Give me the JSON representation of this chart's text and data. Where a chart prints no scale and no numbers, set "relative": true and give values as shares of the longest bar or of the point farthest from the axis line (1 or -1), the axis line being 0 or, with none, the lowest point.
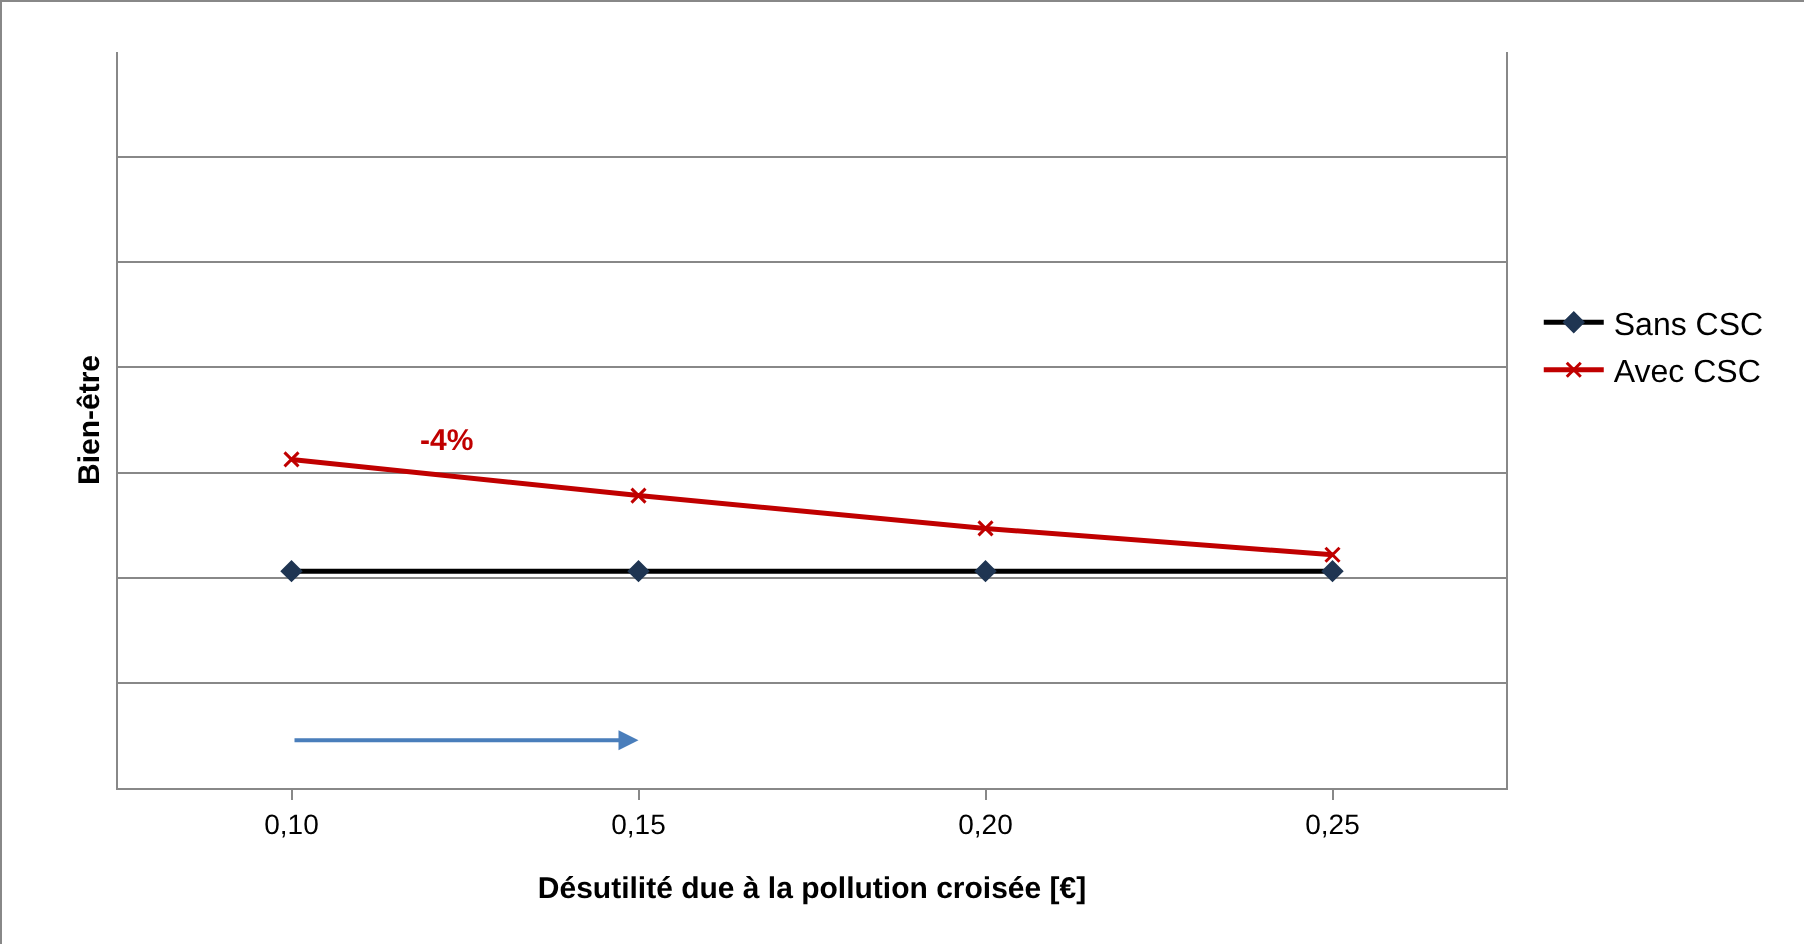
{
  "chart_data": {
    "type": "line",
    "relative": true,
    "xlabel": "Désutilité due à la pollution croisée [€]",
    "ylabel": "Bien-être",
    "categories": [
      "0,10",
      "0,15",
      "0,20",
      "0,25"
    ],
    "series": [
      {
        "name": "Sans CSC",
        "color": "#000000",
        "marker": "diamond",
        "values": [
          0.66,
          0.66,
          0.66,
          0.66
        ]
      },
      {
        "name": "Avec CSC",
        "color": "#c00000",
        "marker": "cross",
        "values": [
          1,
          0.89,
          0.79,
          0.71
        ]
      }
    ],
    "annotations": [
      "-4%"
    ],
    "grid": "y",
    "legend": "right",
    "line_style": "solid"
  }
}
